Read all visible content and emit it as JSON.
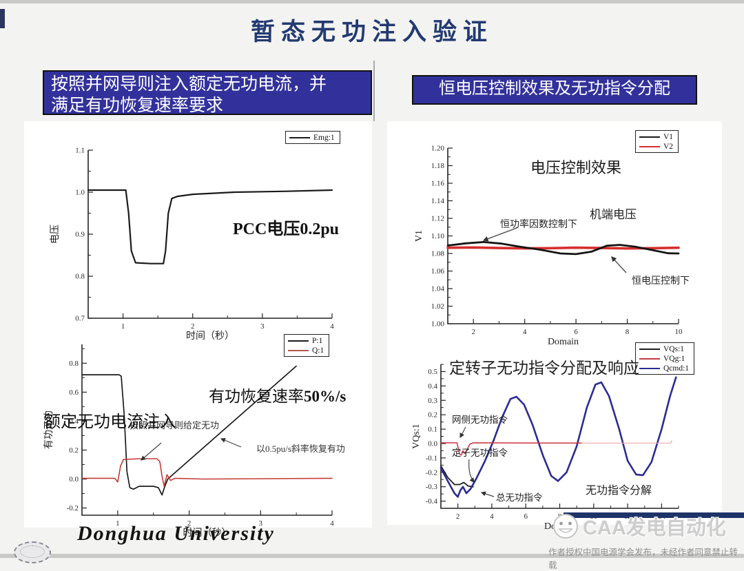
{
  "page": {
    "top_title": "暂态无功注入验证",
    "header_left": {
      "line1": "按照并网导则注入额定无功电流，并",
      "line2": "满足有功恢复速率要求"
    },
    "header_right": "恒电压控制效果及无功指令分配",
    "footer": {
      "university": "Donghua University",
      "watermark": "CAA发电自动化",
      "copyright": "作者授权中国电源学会发布，未经作者同意禁止转载"
    },
    "colors": {
      "header_bg": "#32319b",
      "title_navy": "#233a72",
      "bar_navy": "#1e3468",
      "line_black": "#1a1a1a",
      "line_red": "#c8352f",
      "line_blue": "#2b2b94"
    }
  },
  "chart_data": [
    {
      "id": "pcc-voltage",
      "type": "line",
      "title": "",
      "xlabel": "时间（秒）",
      "ylabel": "电压",
      "xlim": [
        0.5,
        4
      ],
      "ylim": [
        0.7,
        1.1
      ],
      "xticks": [
        [
          1,
          "1"
        ],
        [
          2,
          "2"
        ],
        [
          3,
          "3"
        ],
        [
          4,
          "4"
        ]
      ],
      "yticks": [
        [
          0.7,
          "0.7"
        ],
        [
          0.8,
          "0.8"
        ],
        [
          0.9,
          "0.9"
        ],
        [
          1.0,
          "1.0"
        ],
        [
          1.1,
          "1.1"
        ]
      ],
      "legend": [
        {
          "label": "Emg:1",
          "color": "#1a1a1a"
        }
      ],
      "series": [
        {
          "name": "Emg:1",
          "color": "#1a1a1a",
          "width": 2.2,
          "points": [
            [
              0.5,
              1.005
            ],
            [
              1.04,
              1.005
            ],
            [
              1.08,
              0.95
            ],
            [
              1.12,
              0.86
            ],
            [
              1.18,
              0.832
            ],
            [
              1.4,
              0.83
            ],
            [
              1.58,
              0.83
            ],
            [
              1.61,
              0.86
            ],
            [
              1.65,
              0.95
            ],
            [
              1.7,
              0.985
            ],
            [
              1.78,
              0.99
            ],
            [
              2.0,
              0.995
            ],
            [
              2.6,
              1.0
            ],
            [
              3.3,
              1.002
            ],
            [
              4.0,
              1.005
            ]
          ]
        }
      ],
      "ann": {
        "pcc": "PCC电压0.2pu"
      }
    },
    {
      "id": "active-reactive-power",
      "type": "line",
      "title": "",
      "xlabel": "时间（秒）",
      "ylabel": "有功无功",
      "xlim": [
        0.5,
        4
      ],
      "ylim": [
        -0.25,
        0.93
      ],
      "xticks": [
        [
          1,
          "1"
        ],
        [
          2,
          "2"
        ],
        [
          3,
          "3"
        ],
        [
          4,
          "4"
        ]
      ],
      "yticks": [
        [
          -0.2,
          "-0.2"
        ],
        [
          0.0,
          "0.0"
        ],
        [
          0.2,
          "0.2"
        ],
        [
          0.4,
          "0.4"
        ],
        [
          0.6,
          "0.6"
        ],
        [
          0.8,
          "0.8"
        ]
      ],
      "legend": [
        {
          "label": "P:1",
          "color": "#1a1a1a"
        },
        {
          "label": "Q:1",
          "color": "#b2574d"
        }
      ],
      "series": [
        {
          "name": "P:1",
          "color": "#1a1a1a",
          "width": 1.7,
          "points": [
            [
              0.5,
              0.72
            ],
            [
              1.02,
              0.72
            ],
            [
              1.05,
              0.71
            ],
            [
              1.09,
              0.45
            ],
            [
              1.13,
              0.05
            ],
            [
              1.17,
              -0.06
            ],
            [
              1.22,
              -0.07
            ],
            [
              1.3,
              -0.05
            ],
            [
              1.5,
              -0.05
            ],
            [
              1.57,
              -0.06
            ],
            [
              1.62,
              -0.11
            ],
            [
              1.66,
              -0.05
            ],
            [
              1.7,
              0.0
            ],
            [
              3.5,
              0.78
            ]
          ]
        },
        {
          "name": "Q:1",
          "color": "#c43b35",
          "width": 1.6,
          "points": [
            [
              0.5,
              0.005
            ],
            [
              0.96,
              0.005
            ],
            [
              1.0,
              -0.02
            ],
            [
              1.04,
              0.09
            ],
            [
              1.08,
              0.135
            ],
            [
              1.3,
              0.14
            ],
            [
              1.55,
              0.14
            ],
            [
              1.59,
              0.12
            ],
            [
              1.62,
              0.02
            ],
            [
              1.65,
              -0.05
            ],
            [
              1.69,
              0.03
            ],
            [
              1.74,
              -0.01
            ],
            [
              1.8,
              0.005
            ],
            [
              2.2,
              0.0
            ],
            [
              4.0,
              0.005
            ]
          ]
        }
      ],
      "ann": {
        "rated": "额定无功电流注入",
        "guideline": "按照并网导则给定无功",
        "recovery_cn": "有功恢复速率",
        "recovery_val": "50%/s",
        "slope": "以0.5pu/s斜率恢复有功"
      }
    },
    {
      "id": "voltage-control",
      "type": "line",
      "title": "电压控制效果",
      "xlabel": "Domain",
      "ylabel": "V1",
      "xlim": [
        1,
        10
      ],
      "ylim": [
        1.0,
        1.2
      ],
      "xticks": [
        [
          2,
          "2"
        ],
        [
          4,
          "4"
        ],
        [
          6,
          "6"
        ],
        [
          8,
          "8"
        ],
        [
          10,
          "10"
        ]
      ],
      "yticks": [
        [
          1.0,
          "1.00"
        ],
        [
          1.02,
          "1.02"
        ],
        [
          1.04,
          "1.04"
        ],
        [
          1.06,
          "1.06"
        ],
        [
          1.08,
          "1.08"
        ],
        [
          1.1,
          "1.10"
        ],
        [
          1.12,
          "1.12"
        ],
        [
          1.14,
          "1.14"
        ],
        [
          1.16,
          "1.16"
        ],
        [
          1.18,
          "1.18"
        ],
        [
          1.2,
          "1.20"
        ]
      ],
      "legend": [
        {
          "label": "V1",
          "color": "#1a1a1a"
        },
        {
          "label": "V2",
          "color": "#d62e2e"
        }
      ],
      "series": [
        {
          "name": "V2",
          "color": "#d62e2e",
          "width": 3.6,
          "points": [
            [
              1,
              1.0865
            ],
            [
              2,
              1.0868
            ],
            [
              3,
              1.0862
            ],
            [
              4,
              1.0858
            ],
            [
              5,
              1.086
            ],
            [
              6,
              1.0866
            ],
            [
              7,
              1.0862
            ],
            [
              8,
              1.0857
            ],
            [
              9,
              1.086
            ],
            [
              10,
              1.0865
            ]
          ]
        },
        {
          "name": "V1",
          "color": "#141414",
          "width": 2.8,
          "points": [
            [
              1,
              1.089
            ],
            [
              1.7,
              1.0915
            ],
            [
              2.4,
              1.093
            ],
            [
              3.1,
              1.0912
            ],
            [
              3.8,
              1.0878
            ],
            [
              4.6,
              1.0843
            ],
            [
              5.4,
              1.08
            ],
            [
              6.0,
              1.0793
            ],
            [
              6.6,
              1.082
            ],
            [
              7.2,
              1.0888
            ],
            [
              7.7,
              1.0898
            ],
            [
              8.3,
              1.0878
            ],
            [
              9.0,
              1.0838
            ],
            [
              9.6,
              1.0802
            ],
            [
              10,
              1.08
            ]
          ]
        }
      ],
      "ann": {
        "terminal": "机端电压",
        "const_pf": "恒功率因数控制下",
        "const_v": "恒电压控制下"
      }
    },
    {
      "id": "q-command-split",
      "type": "line",
      "title": "定转子无功指令分配及响应",
      "xlabel": "Domain",
      "ylabel": "VQs:1",
      "xlim": [
        1,
        15
      ],
      "ylim": [
        -0.45,
        0.55
      ],
      "xticks": [
        [
          2,
          "2"
        ],
        [
          4,
          "4"
        ],
        [
          6,
          "6"
        ],
        [
          8,
          "8"
        ],
        [
          10,
          "10"
        ],
        [
          12,
          "12"
        ],
        [
          14,
          "14"
        ]
      ],
      "yticks": [
        [
          -0.4,
          "-0.4"
        ],
        [
          -0.3,
          "-0.3"
        ],
        [
          -0.2,
          "-0.2"
        ],
        [
          -0.1,
          "-0.1"
        ],
        [
          0.0,
          "0.0"
        ],
        [
          0.1,
          "0.1"
        ],
        [
          0.2,
          "0.2"
        ],
        [
          0.3,
          "0.3"
        ],
        [
          0.4,
          "0.4"
        ],
        [
          0.5,
          "0.5"
        ]
      ],
      "legend": [
        {
          "label": "VQs:1",
          "color": "#1c1c1c"
        },
        {
          "label": "VQg:1",
          "color": "#c43b45"
        },
        {
          "label": "Qcmd:1",
          "color": "#2b2b94"
        }
      ],
      "series": [
        {
          "name": "VQs:1",
          "color": "#1c1c1c",
          "width": 1.8,
          "points": [
            [
              1,
              -0.155
            ],
            [
              1.4,
              -0.235
            ],
            [
              1.8,
              -0.285
            ],
            [
              2.1,
              -0.285
            ],
            [
              2.35,
              -0.27
            ],
            [
              2.6,
              -0.295
            ],
            [
              2.9,
              -0.3
            ]
          ]
        },
        {
          "name": "Qcmd:1",
          "color": "#2b2b94",
          "width": 2.6,
          "points": [
            [
              1,
              -0.17
            ],
            [
              1.4,
              -0.26
            ],
            [
              1.8,
              -0.345
            ],
            [
              2.0,
              -0.37
            ],
            [
              2.15,
              -0.325
            ],
            [
              2.3,
              -0.3
            ],
            [
              2.5,
              -0.345
            ],
            [
              2.75,
              -0.315
            ],
            [
              3.1,
              -0.24
            ],
            [
              3.6,
              -0.12
            ],
            [
              4.1,
              0.02
            ],
            [
              4.6,
              0.18
            ],
            [
              5.1,
              0.31
            ],
            [
              5.45,
              0.325
            ],
            [
              5.9,
              0.27
            ],
            [
              6.4,
              0.13
            ],
            [
              7.0,
              -0.08
            ],
            [
              7.5,
              -0.225
            ],
            [
              7.9,
              -0.26
            ],
            [
              8.4,
              -0.2
            ],
            [
              9.0,
              -0.02
            ],
            [
              9.6,
              0.25
            ],
            [
              10.1,
              0.41
            ],
            [
              10.45,
              0.425
            ],
            [
              10.9,
              0.33
            ],
            [
              11.5,
              0.1
            ],
            [
              12.0,
              -0.12
            ],
            [
              12.5,
              -0.215
            ],
            [
              12.9,
              -0.22
            ],
            [
              13.4,
              -0.13
            ],
            [
              14.0,
              0.1
            ],
            [
              14.5,
              0.33
            ],
            [
              14.85,
              0.46
            ]
          ]
        },
        {
          "name": "VQg:1",
          "color": "#cc3440",
          "width": 1.5,
          "points": [
            [
              1,
              0.005
            ],
            [
              1.95,
              0.005
            ],
            [
              2.02,
              -0.03
            ],
            [
              2.1,
              -0.075
            ],
            [
              2.2,
              -0.08
            ],
            [
              2.3,
              -0.05
            ],
            [
              2.42,
              -0.07
            ],
            [
              2.55,
              -0.04
            ],
            [
              2.7,
              -0.005
            ],
            [
              2.9,
              0.005
            ],
            [
              9.3,
              0.003
            ]
          ]
        },
        {
          "name": "VQg:1",
          "color": "#e9a9ad",
          "width": 1.2,
          "points": [
            [
              9.3,
              0.003
            ],
            [
              14.55,
              0.003
            ],
            [
              14.6,
              0.02
            ]
          ]
        }
      ],
      "ann": {
        "grid": "网侧无功指令",
        "stator": "定子无功指令",
        "total": "总无功指令",
        "decomp": "无功指令分解"
      }
    }
  ]
}
